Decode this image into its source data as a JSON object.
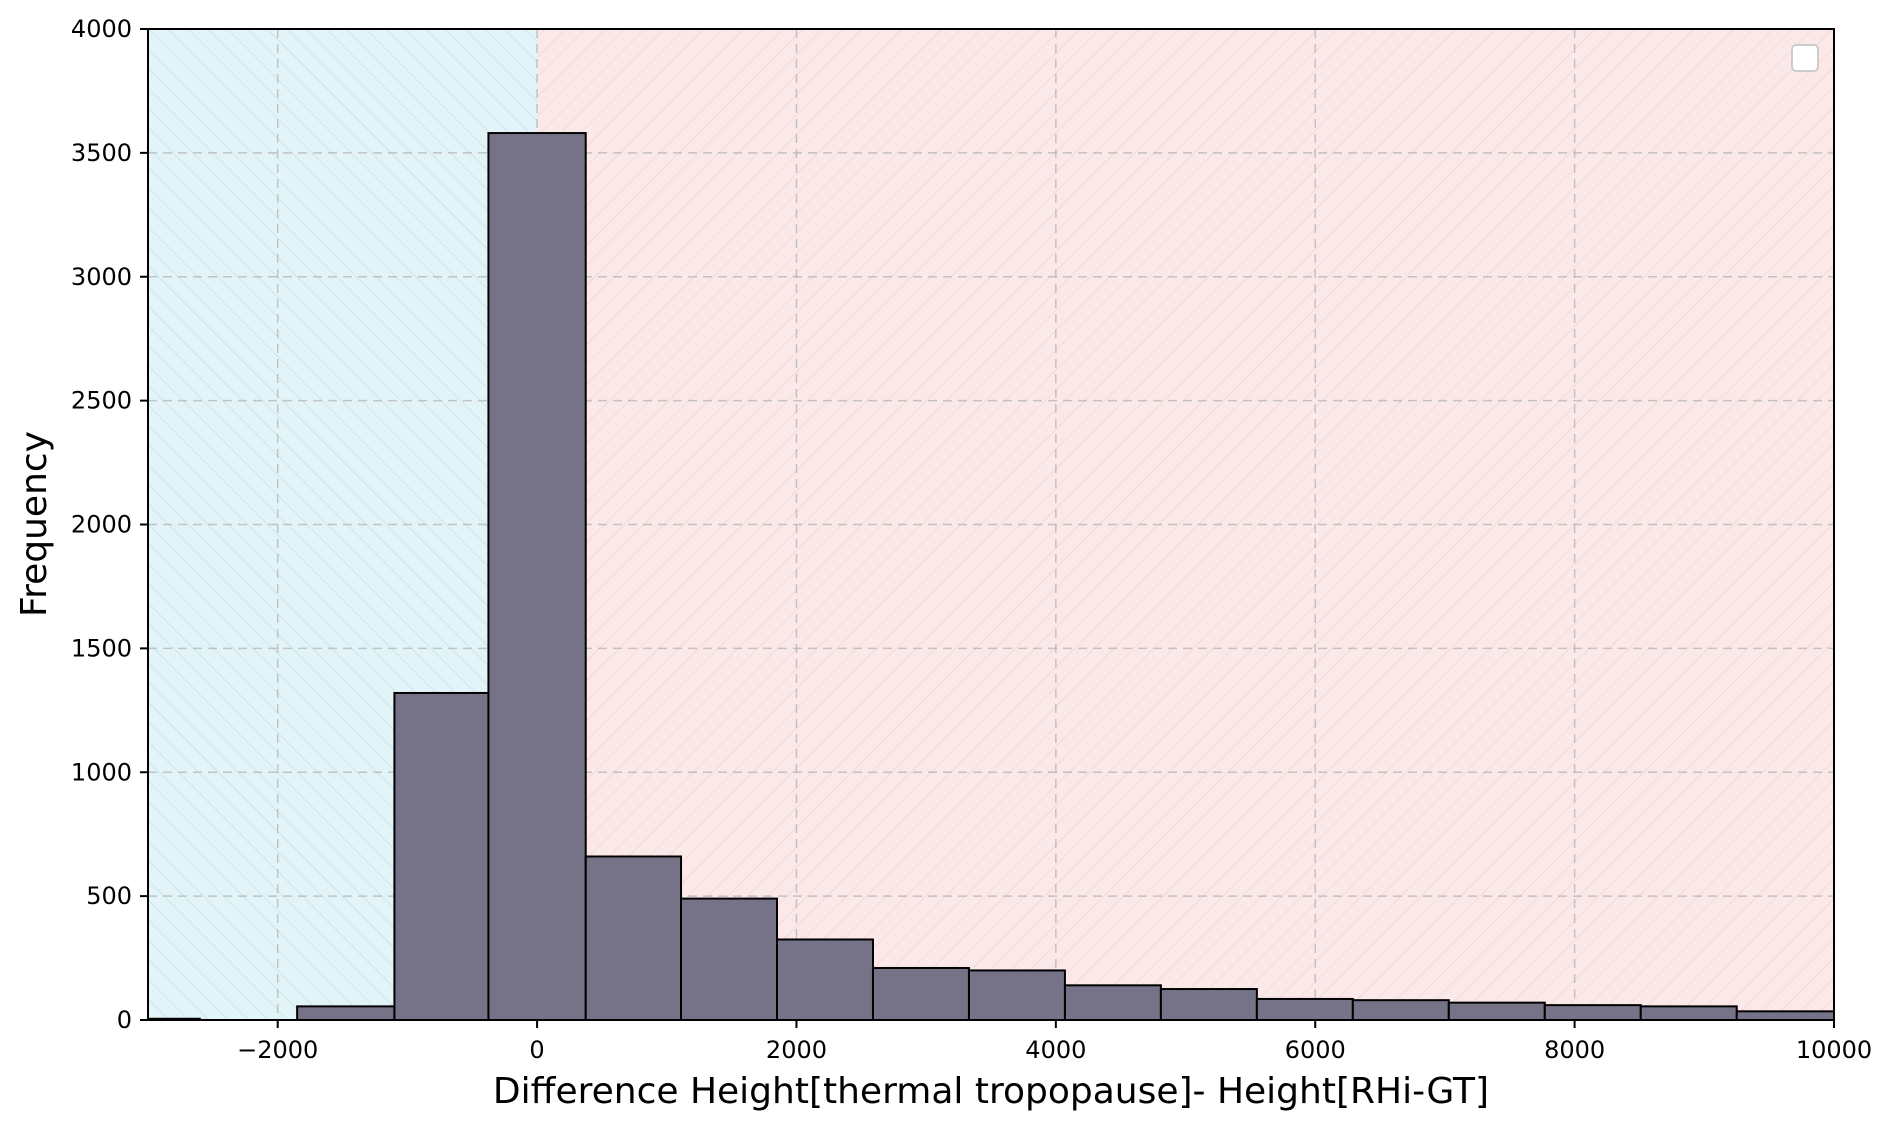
{
  "chart_data": {
    "type": "bar",
    "title": "",
    "xlabel": "Difference Height[thermal tropopause]- Height[RHi-GT]",
    "ylabel": "Frequency",
    "xlim": [
      -3000,
      10000
    ],
    "ylim": [
      0,
      4000
    ],
    "xticks": [
      -2000,
      0,
      2000,
      4000,
      6000,
      8000,
      10000
    ],
    "xtick_labels": [
      "−2000",
      "0",
      "2000",
      "4000",
      "6000",
      "8000",
      "10000"
    ],
    "yticks": [
      0,
      500,
      1000,
      1500,
      2000,
      2500,
      3000,
      3500,
      4000
    ],
    "ytick_labels": [
      "0",
      "500",
      "1000",
      "1500",
      "2000",
      "2500",
      "3000",
      "3500",
      "4000"
    ],
    "grid": true,
    "legend": "top-right (empty)",
    "regions": [
      {
        "x_start": -3000,
        "x_end": 0,
        "color": "#e3f4f8",
        "hatch": "/"
      },
      {
        "x_start": 0,
        "x_end": 10000,
        "color": "#fbe9e9",
        "hatch": "\\"
      }
    ],
    "bar_color": "#737087",
    "bar_edge_color": "#000000",
    "bins": [
      {
        "x0": -3350,
        "x1": -2600,
        "value": 5
      },
      {
        "x0": -1850,
        "x1": -1100,
        "value": 55
      },
      {
        "x0": -1100,
        "x1": -375,
        "value": 1320
      },
      {
        "x0": -375,
        "x1": 375,
        "value": 3580
      },
      {
        "x0": 375,
        "x1": 1110,
        "value": 660
      },
      {
        "x0": 1110,
        "x1": 1850,
        "value": 490
      },
      {
        "x0": 1850,
        "x1": 2590,
        "value": 325
      },
      {
        "x0": 2590,
        "x1": 3330,
        "value": 210
      },
      {
        "x0": 3330,
        "x1": 4070,
        "value": 200
      },
      {
        "x0": 4070,
        "x1": 4810,
        "value": 140
      },
      {
        "x0": 4810,
        "x1": 5550,
        "value": 125
      },
      {
        "x0": 5550,
        "x1": 6290,
        "value": 85
      },
      {
        "x0": 6290,
        "x1": 7030,
        "value": 80
      },
      {
        "x0": 7030,
        "x1": 7770,
        "value": 70
      },
      {
        "x0": 7770,
        "x1": 8510,
        "value": 60
      },
      {
        "x0": 8510,
        "x1": 9250,
        "value": 55
      },
      {
        "x0": 9250,
        "x1": 10000,
        "value": 35
      }
    ]
  }
}
